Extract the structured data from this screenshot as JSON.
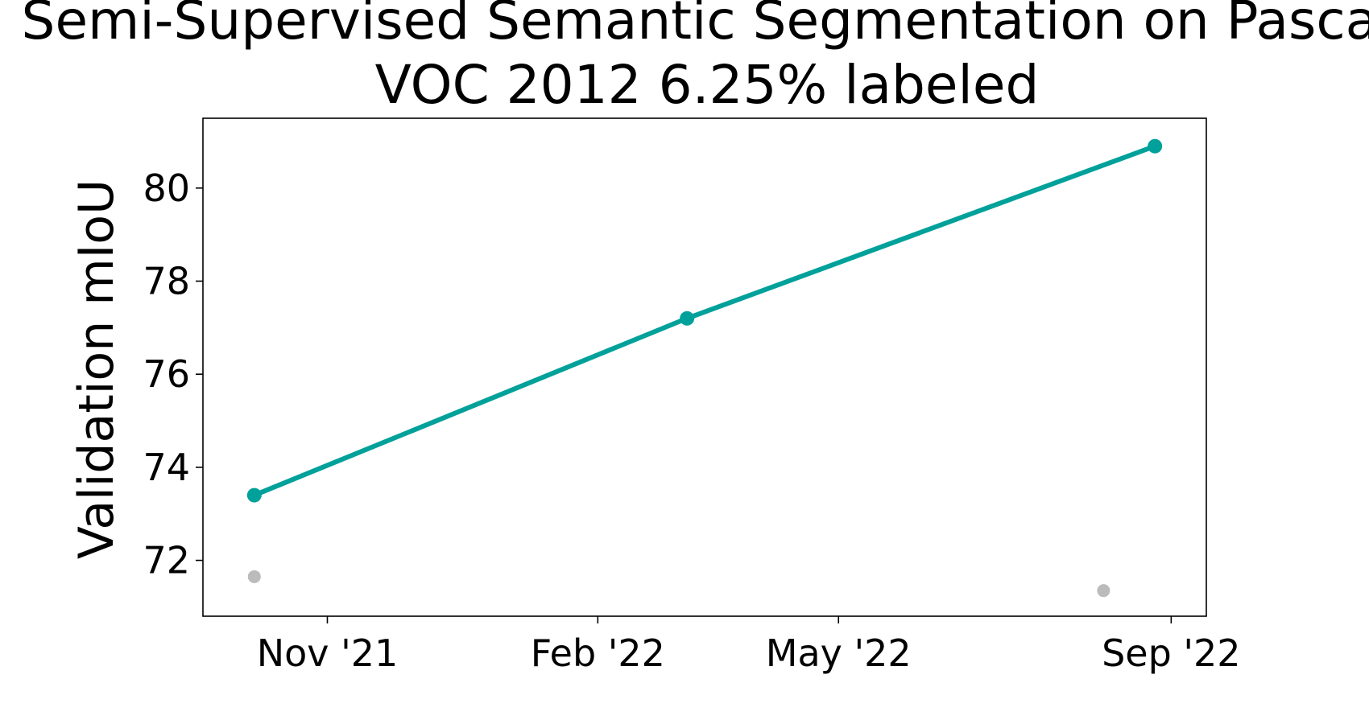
{
  "chart_data": {
    "type": "line",
    "title_line1": "Semi-Supervised Semantic Segmentation on Pascal",
    "title_line2": "VOC 2012 6.25% labeled",
    "xlabel": "",
    "ylabel": "Validation mIoU",
    "x_axis": {
      "type": "date",
      "range": [
        "2021-09-08",
        "2022-09-14"
      ],
      "tick_labels": [
        "Nov '21",
        "Feb '22",
        "May '22",
        "Sep '22"
      ],
      "tick_dates": [
        "2021-10-24",
        "2022-02-01",
        "2022-05-01",
        "2022-09-01"
      ]
    },
    "y_axis": {
      "range": [
        70.8,
        81.5
      ],
      "ticks": [
        72,
        74,
        76,
        78,
        80
      ]
    },
    "grid": false,
    "series": [
      {
        "role": "state-of-the-art",
        "color": "#00a19a",
        "points": [
          {
            "x": "2021-09-27",
            "y": 73.4
          },
          {
            "x": "2022-03-06",
            "y": 77.2
          },
          {
            "x": "2022-08-26",
            "y": 80.9
          }
        ]
      },
      {
        "role": "other methods",
        "color": "#bbbbbb",
        "points": [
          {
            "x": "2021-09-27",
            "y": 71.65
          },
          {
            "x": "2022-08-07",
            "y": 71.35
          }
        ]
      }
    ]
  }
}
